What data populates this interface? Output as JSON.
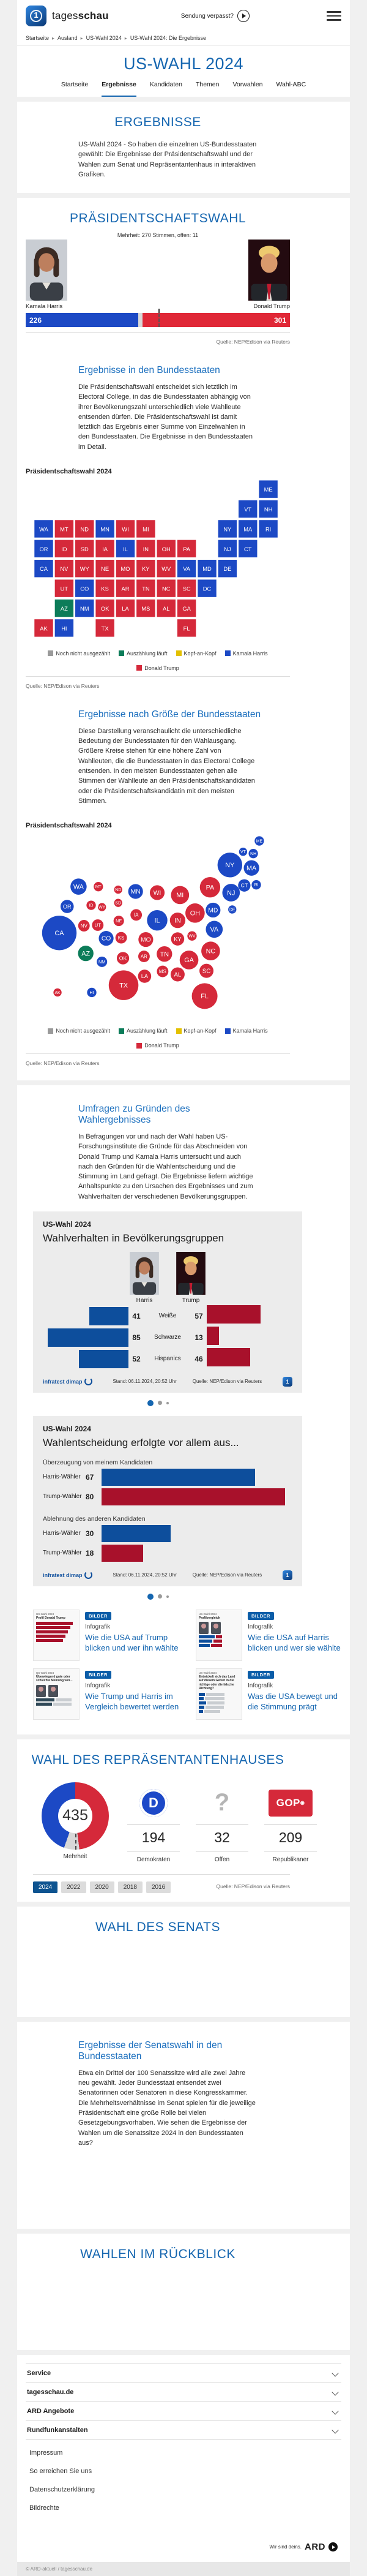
{
  "colors": {
    "brand_blue": "#1566b0",
    "harris_blue": "#1c49c5",
    "trump_red": "#d5293a",
    "bar_blue": "#0d4e9c",
    "bar_red": "#a8112b",
    "counting_green": "#0c7c59",
    "tossup_yellow": "#e3c000",
    "open_gray": "#9a9a9a",
    "ec_red": "#e02837"
  },
  "header": {
    "brand_regular": "tages",
    "brand_bold": "schau",
    "missed_show_label": "Sendung verpasst?"
  },
  "breadcrumb": [
    "Startseite",
    "Ausland",
    "US-Wahl 2024",
    "US-Wahl 2024: Die Ergebnisse"
  ],
  "hub": {
    "title": "US-WAHL 2024",
    "tabs": [
      {
        "label": "Startseite",
        "active": false
      },
      {
        "label": "Ergebnisse",
        "active": true
      },
      {
        "label": "Kandidaten",
        "active": false
      },
      {
        "label": "Themen",
        "active": false
      },
      {
        "label": "Vorwahlen",
        "active": false
      },
      {
        "label": "Wahl-ABC",
        "active": false
      }
    ]
  },
  "ergebnisse": {
    "title": "ERGEBNISSE",
    "intro": "US-Wahl 2024 - So haben die einzelnen US-Bundesstaaten gewählt: Die Ergebnisse der Präsidentschaftswahl und der Wahlen zum Senat und Repräsentantenhaus in interaktiven Grafiken."
  },
  "president": {
    "title": "PRÄSIDENTSCHAFTSWAHL",
    "majority_note": "Mehrheit: 270 Stimmen, offen: 11",
    "harris_name": "Kamala Harris",
    "trump_name": "Donald Trump",
    "harris_votes": "226",
    "trump_votes": "301",
    "source": "Quelle: NEP/Edison via Reuters",
    "states_heading": "Ergebnisse in den Bundesstaaten",
    "states_text": "Die Präsidentschaftswahl entscheidet sich letztlich im Electoral College, in das die Bundesstaaten abhängig von ihrer Bevölkerungszahl unterschiedlich viele Wahlleute entsenden dürfen. Die Präsidentschaftswahl ist damit letztlich das Ergebnis einer Summe von Einzelwahlen in den Bundesstaaten. Die Ergebnisse in den Bundesstaaten im Detail.",
    "map_label": "Präsidentschaftswahl 2024",
    "size_heading": "Ergebnisse nach Größe der Bundesstaaten",
    "size_text": "Diese Darstellung veranschaulicht die unterschiedliche Bedeutung der Bundesstaaten für den Wahlausgang. Größere Kreise stehen für eine höhere Zahl von Wahlleuten, die die Bundesstaaten in das Electoral College entsenden. In den meisten Bundesstaaten gehen alle Stimmen der Wahlleute an den Präsidentschaftskandidaten oder die Präsidentschaftskandidatin mit den meisten Stimmen.",
    "legend": [
      {
        "label": "Noch nicht ausgezählt",
        "color": "#9a9a9a"
      },
      {
        "label": "Auszählung läuft",
        "color": "#0c7c59"
      },
      {
        "label": "Kopf-an-Kopf",
        "color": "#e3c000"
      },
      {
        "label": "Kamala Harris",
        "color": "#1c49c5"
      },
      {
        "label": "Donald Trump",
        "color": "#d5293a"
      }
    ]
  },
  "umfragen": {
    "heading": "Umfragen zu Gründen des Wahlergebnisses",
    "text": "In Befragungen vor und nach der Wahl haben US-Forschungsinstitute die Gründe für das Abschneiden von Donald Trump und Kamala Harris untersucht und auch nach den Gründen für die Wahlentscheidung und die Stimmung im Land gefragt. Die Ergebnisse liefern wichtige Anhaltspunkte zu den Ursachen des Ergebnisses und zum Wahlverhalten der verschiedenen Bevölkerungsgruppen.",
    "chart1": {
      "kicker": "US-Wahl 2024",
      "title": "Wahlverhalten in Bevölkerungsgruppen",
      "col1": "Harris",
      "col2": "Trump",
      "stand": "Stand: 06.11.2024, 20:52 Uhr",
      "source": "Quelle: NEP/Edison via Reuters",
      "provider": "infratest dimap"
    },
    "chart2": {
      "kicker": "US-Wahl 2024",
      "title": "Wahlentscheidung erfolgte vor allem aus...",
      "stand": "Stand: 06.11.2024, 20:52 Uhr",
      "source": "Quelle: NEP/Edison via Reuters",
      "provider": "infratest dimap"
    },
    "teasers": [
      {
        "badge": "BILDER",
        "kicker": "Infografik",
        "title": "Wie die USA auf Trump blicken und wer ihn wählte",
        "thumb_kicker": "US-Wahl 2024",
        "thumb_title": "Profil Donald Trump",
        "thumb_type": "red-bars"
      },
      {
        "badge": "BILDER",
        "kicker": "Infografik",
        "title": "Wie die USA auf Harris blicken und wer sie wählte",
        "thumb_kicker": "US-Wahl 2024",
        "thumb_title": "Profilvergleich",
        "thumb_type": "compare"
      },
      {
        "badge": "BILDER",
        "kicker": "Infografik",
        "title": "Wie Trump und Harris im Vergleich bewertet werden",
        "thumb_kicker": "US-Wahl 2024",
        "thumb_title": "Überwiegend gute oder schlechte Meinung von...",
        "thumb_type": "opinion"
      },
      {
        "badge": "BILDER",
        "kicker": "Infografik",
        "title": "Was die USA bewegt und die Stimmung prägt",
        "thumb_kicker": "US-Wahl 2024",
        "thumb_title": "Entwickelt sich das Land auf diesem Gebiet in die richtige oder die falsche Richtung?",
        "thumb_type": "direction"
      }
    ]
  },
  "house": {
    "title": "WAHL DES REPRÄSENTANTENHAUSES",
    "total": "435",
    "majority_label": "Mehrheit",
    "stats": [
      {
        "value": "194",
        "label": "Demokraten",
        "logo": "dem"
      },
      {
        "value": "32",
        "label": "Offen",
        "logo": "question"
      },
      {
        "value": "209",
        "label": "Republikaner",
        "logo": "gop"
      }
    ],
    "years": [
      "2024",
      "2022",
      "2020",
      "2018",
      "2016"
    ],
    "active_year": "2024",
    "source": "Quelle: NEP/Edison via Reuters"
  },
  "senate": {
    "title": "WAHL DES SENATS"
  },
  "senate_states": {
    "heading": "Ergebnisse der Senatswahl in den Bundesstaaten",
    "text": "Etwa ein Drittel der 100 Senatssitze wird alle zwei Jahre neu gewählt. Jeder Bundesstaat entsendet zwei Senatorinnen oder Senatoren in diese Kongresskammer. Die Mehrheitsverhältnisse im Senat spielen für die jeweilige Präsidentschaft eine große Rolle bei vielen Gesetzgebungsvorhaben. Wie sehen die Ergebnisse der Wahlen um die Senatssitze 2024 in den Bundesstaaten aus?"
  },
  "retrospective": {
    "title": "WAHLEN IM RÜCKBLICK"
  },
  "footer": {
    "accordions": [
      "Service",
      "tagesschau.de",
      "ARD Angebote",
      "Rundfunkanstalten"
    ],
    "links": [
      "Impressum",
      "So erreichen Sie uns",
      "Datenschutzerklärung",
      "Bildrechte"
    ],
    "ard_claim": "Wir sind deins.",
    "ard_brand": "ARD",
    "copyright": "© ARD-aktuell / tagesschau.de"
  },
  "chart_data": [
    {
      "type": "bar",
      "title": "Präsidentschaftswahl – Electoral College",
      "categories": [
        "Kamala Harris",
        "Donald Trump"
      ],
      "values": [
        226,
        301
      ],
      "total": 538,
      "majority": 270,
      "open": 11,
      "annotation": "Mehrheit: 270 Stimmen, offen: 11",
      "source": "Quelle: NEP/Edison via Reuters"
    },
    {
      "type": "map",
      "title": "Präsidentschaftswahl 2024 – Ergebnisse in den Bundesstaaten",
      "legend": [
        "Noch nicht ausgezählt",
        "Auszählung läuft",
        "Kopf-an-Kopf",
        "Kamala Harris",
        "Donald Trump"
      ],
      "states": [
        {
          "code": "WA",
          "winner": "harris",
          "ev": 12
        },
        {
          "code": "OR",
          "winner": "harris",
          "ev": 8
        },
        {
          "code": "CA",
          "winner": "harris",
          "ev": 54
        },
        {
          "code": "CO",
          "winner": "harris",
          "ev": 10
        },
        {
          "code": "NM",
          "winner": "harris",
          "ev": 5
        },
        {
          "code": "MN",
          "winner": "harris",
          "ev": 10
        },
        {
          "code": "IL",
          "winner": "harris",
          "ev": 19
        },
        {
          "code": "NY",
          "winner": "harris",
          "ev": 28
        },
        {
          "code": "VT",
          "winner": "harris",
          "ev": 3
        },
        {
          "code": "NH",
          "winner": "harris",
          "ev": 4
        },
        {
          "code": "ME",
          "winner": "harris",
          "ev": 4
        },
        {
          "code": "MA",
          "winner": "harris",
          "ev": 11
        },
        {
          "code": "CT",
          "winner": "harris",
          "ev": 7
        },
        {
          "code": "RI",
          "winner": "harris",
          "ev": 4
        },
        {
          "code": "NJ",
          "winner": "harris",
          "ev": 14
        },
        {
          "code": "DE",
          "winner": "harris",
          "ev": 3
        },
        {
          "code": "MD",
          "winner": "harris",
          "ev": 10
        },
        {
          "code": "DC",
          "winner": "harris",
          "ev": 3
        },
        {
          "code": "VA",
          "winner": "harris",
          "ev": 13
        },
        {
          "code": "HI",
          "winner": "harris",
          "ev": 4
        },
        {
          "code": "ID",
          "winner": "trump",
          "ev": 4
        },
        {
          "code": "MT",
          "winner": "trump",
          "ev": 4
        },
        {
          "code": "WY",
          "winner": "trump",
          "ev": 3
        },
        {
          "code": "NV",
          "winner": "trump",
          "ev": 6
        },
        {
          "code": "UT",
          "winner": "trump",
          "ev": 6
        },
        {
          "code": "ND",
          "winner": "trump",
          "ev": 3
        },
        {
          "code": "SD",
          "winner": "trump",
          "ev": 3
        },
        {
          "code": "NE",
          "winner": "trump",
          "ev": 5
        },
        {
          "code": "KS",
          "winner": "trump",
          "ev": 6
        },
        {
          "code": "OK",
          "winner": "trump",
          "ev": 7
        },
        {
          "code": "TX",
          "winner": "trump",
          "ev": 40
        },
        {
          "code": "IA",
          "winner": "trump",
          "ev": 6
        },
        {
          "code": "MO",
          "winner": "trump",
          "ev": 10
        },
        {
          "code": "AR",
          "winner": "trump",
          "ev": 6
        },
        {
          "code": "LA",
          "winner": "trump",
          "ev": 8
        },
        {
          "code": "WI",
          "winner": "trump",
          "ev": 10
        },
        {
          "code": "MI",
          "winner": "trump",
          "ev": 15
        },
        {
          "code": "IN",
          "winner": "trump",
          "ev": 11
        },
        {
          "code": "OH",
          "winner": "trump",
          "ev": 17
        },
        {
          "code": "PA",
          "winner": "trump",
          "ev": 19
        },
        {
          "code": "KY",
          "winner": "trump",
          "ev": 8
        },
        {
          "code": "TN",
          "winner": "trump",
          "ev": 11
        },
        {
          "code": "MS",
          "winner": "trump",
          "ev": 6
        },
        {
          "code": "AL",
          "winner": "trump",
          "ev": 9
        },
        {
          "code": "GA",
          "winner": "trump",
          "ev": 16
        },
        {
          "code": "FL",
          "winner": "trump",
          "ev": 30
        },
        {
          "code": "SC",
          "winner": "trump",
          "ev": 9
        },
        {
          "code": "NC",
          "winner": "trump",
          "ev": 16
        },
        {
          "code": "WV",
          "winner": "trump",
          "ev": 4
        },
        {
          "code": "AK",
          "winner": "trump",
          "ev": 3
        },
        {
          "code": "AZ",
          "winner": "counting",
          "ev": 11
        }
      ]
    },
    {
      "type": "bubble-map",
      "title": "Präsidentschaftswahl 2024 – Ergebnisse nach Größe der Bundesstaaten",
      "sizing": "Kreisgröße proportional zur Zahl der Wahlleute",
      "data_note": "verwendet dieselben Bundesstaaten-Ergebnisse wie die Karte (chart_data[1].states)"
    },
    {
      "type": "bar",
      "title": "Wahlverhalten in Bevölkerungsgruppen",
      "categories": [
        "Weiße",
        "Schwarze",
        "Hispanics"
      ],
      "series": [
        {
          "name": "Harris",
          "values": [
            41,
            85,
            52
          ]
        },
        {
          "name": "Trump",
          "values": [
            57,
            13,
            46
          ]
        }
      ],
      "stand": "Stand: 06.11.2024, 20:52 Uhr",
      "source": "Quelle: NEP/Edison via Reuters"
    },
    {
      "type": "bar",
      "title": "Wahlentscheidung erfolgte vor allem aus...",
      "groups": [
        {
          "label": "Überzeugung von meinem Kandidaten",
          "rows": [
            {
              "name": "Harris-Wähler",
              "value": 67
            },
            {
              "name": "Trump-Wähler",
              "value": 80
            }
          ]
        },
        {
          "label": "Ablehnung des anderen Kandidaten",
          "rows": [
            {
              "name": "Harris-Wähler",
              "value": 30
            },
            {
              "name": "Trump-Wähler",
              "value": 18
            }
          ]
        }
      ],
      "stand": "Stand: 06.11.2024, 20:52 Uhr",
      "source": "Quelle: NEP/Edison via Reuters"
    },
    {
      "type": "pie",
      "title": "Wahl des Repräsentantenhauses",
      "categories": [
        "Demokraten",
        "Offen",
        "Republikaner"
      ],
      "values": [
        194,
        32,
        209
      ],
      "total": 435,
      "center_label": "435",
      "majority_label": "Mehrheit"
    }
  ]
}
